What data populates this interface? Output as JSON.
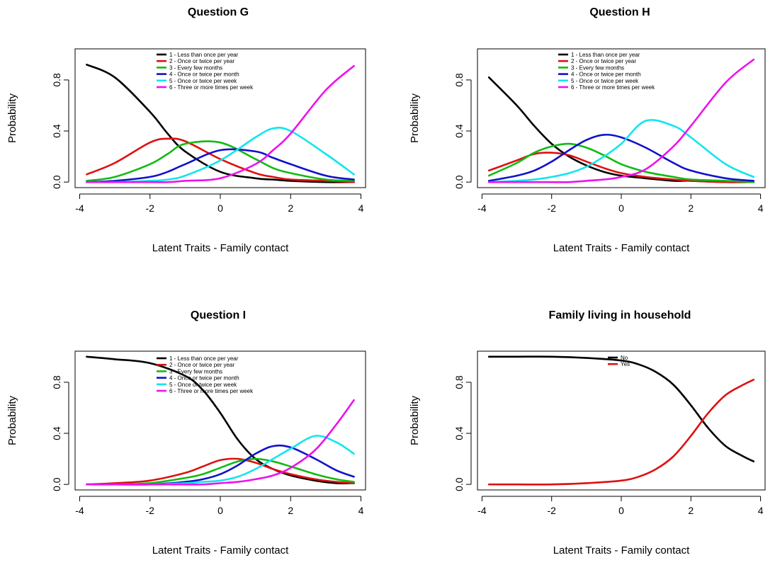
{
  "chart_data": [
    {
      "type": "line",
      "title": "Question G",
      "xlabel": "Latent Traits - Family contact",
      "ylabel": "Probability",
      "xlim": [
        -4,
        4
      ],
      "ylim": [
        0,
        0.8
      ],
      "xticks": [
        "-4",
        "-2",
        "0",
        "2",
        "4"
      ],
      "yticks": [
        "0.0",
        "0.4",
        "0.8"
      ],
      "legend_position": "top",
      "x": [
        -3.8,
        -3.0,
        -2.0,
        -1.5,
        -1.0,
        0.0,
        1.0,
        1.5,
        2.0,
        3.0,
        3.8
      ],
      "series": [
        {
          "name": "1 - Less than once per year",
          "color": "#000000",
          "values": [
            0.92,
            0.82,
            0.55,
            0.38,
            0.24,
            0.08,
            0.03,
            0.02,
            0.01,
            0.0,
            0.0
          ]
        },
        {
          "name": "2 - Once or twice per year",
          "color": "#dd1111",
          "values": [
            0.06,
            0.15,
            0.31,
            0.34,
            0.32,
            0.18,
            0.07,
            0.04,
            0.02,
            0.01,
            0.0
          ]
        },
        {
          "name": "3 - Every few months",
          "color": "#11bb11",
          "values": [
            0.01,
            0.04,
            0.14,
            0.22,
            0.3,
            0.31,
            0.18,
            0.11,
            0.07,
            0.02,
            0.01
          ]
        },
        {
          "name": "4 - Once or twice per month",
          "color": "#1111cc",
          "values": [
            0.0,
            0.01,
            0.04,
            0.08,
            0.14,
            0.25,
            0.24,
            0.19,
            0.14,
            0.05,
            0.02
          ]
        },
        {
          "name": "5 - Once or twice per week",
          "color": "#11e5ee",
          "values": [
            0.0,
            0.0,
            0.01,
            0.02,
            0.05,
            0.17,
            0.35,
            0.42,
            0.4,
            0.22,
            0.06
          ]
        },
        {
          "name": "6 - Three or more times per week",
          "color": "#ee11ee",
          "values": [
            0.0,
            0.0,
            0.0,
            0.0,
            0.01,
            0.03,
            0.14,
            0.25,
            0.38,
            0.72,
            0.91
          ]
        }
      ]
    },
    {
      "type": "line",
      "title": "Question H",
      "xlabel": "Latent Traits - Family contact",
      "ylabel": "Probability",
      "xlim": [
        -4,
        4
      ],
      "ylim": [
        0,
        0.8
      ],
      "xticks": [
        "-4",
        "-2",
        "0",
        "2",
        "4"
      ],
      "yticks": [
        "0.0",
        "0.4",
        "0.8"
      ],
      "legend_position": "top",
      "x": [
        -3.8,
        -3.0,
        -2.5,
        -2.0,
        -1.5,
        -1.0,
        -0.5,
        0.0,
        0.7,
        1.5,
        2.0,
        3.0,
        3.8
      ],
      "series": [
        {
          "name": "1 - Less than once per year",
          "color": "#000000",
          "values": [
            0.82,
            0.6,
            0.44,
            0.3,
            0.2,
            0.13,
            0.08,
            0.05,
            0.03,
            0.01,
            0.01,
            0.0,
            0.0
          ]
        },
        {
          "name": "2 - Once or twice per year",
          "color": "#dd1111",
          "values": [
            0.09,
            0.17,
            0.22,
            0.23,
            0.21,
            0.16,
            0.11,
            0.07,
            0.04,
            0.02,
            0.01,
            0.0,
            0.0
          ]
        },
        {
          "name": "3 - Every few months",
          "color": "#11bb11",
          "values": [
            0.05,
            0.15,
            0.23,
            0.28,
            0.3,
            0.27,
            0.21,
            0.14,
            0.08,
            0.04,
            0.02,
            0.01,
            0.0
          ]
        },
        {
          "name": "4 - Once or twice per month",
          "color": "#1111cc",
          "values": [
            0.01,
            0.05,
            0.09,
            0.16,
            0.25,
            0.33,
            0.37,
            0.35,
            0.27,
            0.15,
            0.09,
            0.03,
            0.01
          ]
        },
        {
          "name": "5 - Once or twice per week",
          "color": "#11e5ee",
          "values": [
            0.0,
            0.01,
            0.02,
            0.04,
            0.07,
            0.12,
            0.2,
            0.3,
            0.48,
            0.44,
            0.35,
            0.14,
            0.04
          ]
        },
        {
          "name": "6 - Three or more times per week",
          "color": "#ee11ee",
          "values": [
            0.0,
            0.0,
            0.0,
            0.0,
            0.0,
            0.01,
            0.02,
            0.04,
            0.1,
            0.28,
            0.44,
            0.78,
            0.96
          ]
        }
      ]
    },
    {
      "type": "line",
      "title": "Question I",
      "xlabel": "Latent Traits - Family contact",
      "ylabel": "Probability",
      "xlim": [
        -4,
        4
      ],
      "ylim": [
        0,
        0.8
      ],
      "xticks": [
        "-4",
        "-2",
        "0",
        "2",
        "4"
      ],
      "yticks": [
        "0.0",
        "0.4",
        "0.8"
      ],
      "legend_position": "top",
      "x": [
        -3.8,
        -3.0,
        -2.0,
        -1.0,
        -0.5,
        0.0,
        0.5,
        1.0,
        1.5,
        2.0,
        2.7,
        3.3,
        3.8
      ],
      "series": [
        {
          "name": "1 - Less than once per year",
          "color": "#000000",
          "values": [
            1.0,
            0.98,
            0.95,
            0.85,
            0.74,
            0.56,
            0.35,
            0.2,
            0.12,
            0.07,
            0.03,
            0.01,
            0.01
          ]
        },
        {
          "name": "2 - Once or twice per year",
          "color": "#dd1111",
          "values": [
            0.0,
            0.01,
            0.03,
            0.09,
            0.14,
            0.19,
            0.2,
            0.17,
            0.12,
            0.08,
            0.04,
            0.02,
            0.01
          ]
        },
        {
          "name": "3 - Every few months",
          "color": "#11bb11",
          "values": [
            0.0,
            0.0,
            0.01,
            0.05,
            0.08,
            0.13,
            0.18,
            0.2,
            0.18,
            0.14,
            0.08,
            0.04,
            0.02
          ]
        },
        {
          "name": "4 - Once or twice per month",
          "color": "#1111cc",
          "values": [
            0.0,
            0.0,
            0.0,
            0.02,
            0.04,
            0.08,
            0.15,
            0.24,
            0.3,
            0.29,
            0.2,
            0.11,
            0.06
          ]
        },
        {
          "name": "5 - Once or twice per week",
          "color": "#11e5ee",
          "values": [
            0.0,
            0.0,
            0.0,
            0.01,
            0.02,
            0.03,
            0.06,
            0.12,
            0.2,
            0.28,
            0.38,
            0.33,
            0.24
          ]
        },
        {
          "name": "6 - Three or more times per week",
          "color": "#ee11ee",
          "values": [
            0.0,
            0.0,
            0.0,
            0.0,
            0.0,
            0.01,
            0.02,
            0.04,
            0.07,
            0.13,
            0.27,
            0.47,
            0.66
          ]
        }
      ]
    },
    {
      "type": "line",
      "title": "Family living in household",
      "xlabel": "Latent Traits - Family contact",
      "ylabel": "Probability",
      "xlim": [
        -4,
        4
      ],
      "ylim": [
        0,
        0.8
      ],
      "xticks": [
        "-4",
        "-2",
        "0",
        "2",
        "4"
      ],
      "yticks": [
        "0.0",
        "0.4",
        "0.8"
      ],
      "legend_position": "top",
      "x": [
        -3.8,
        -3.0,
        -2.0,
        -1.0,
        0.0,
        0.5,
        1.0,
        1.5,
        2.0,
        2.5,
        3.0,
        3.5,
        3.8
      ],
      "series": [
        {
          "name": "No",
          "color": "#000000",
          "values": [
            1.0,
            1.0,
            1.0,
            0.99,
            0.97,
            0.94,
            0.88,
            0.78,
            0.62,
            0.44,
            0.3,
            0.22,
            0.18
          ]
        },
        {
          "name": "Yes",
          "color": "#dd1111",
          "values": [
            0.0,
            0.0,
            0.0,
            0.01,
            0.03,
            0.06,
            0.12,
            0.22,
            0.38,
            0.56,
            0.7,
            0.78,
            0.82
          ]
        }
      ]
    }
  ]
}
